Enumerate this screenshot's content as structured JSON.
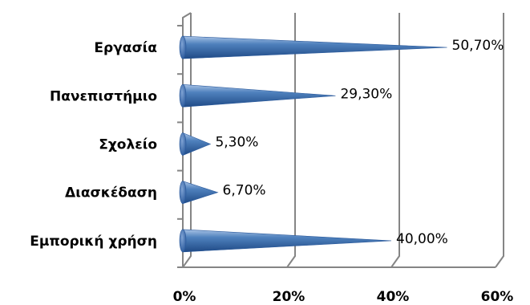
{
  "chart_data": {
    "type": "bar",
    "orientation": "horizontal",
    "shape": "cone",
    "categories": [
      "Εργασία",
      "Πανεπιστήμιο",
      "Σχολείο",
      "Διασκέδαση",
      "Εμπορική χρήση"
    ],
    "values": [
      50.7,
      29.3,
      5.3,
      6.7,
      40.0
    ],
    "data_labels": [
      "50,70%",
      "29,30%",
      "5,30%",
      "6,70%",
      "40,00%"
    ],
    "x_ticks": [
      "0%",
      "20%",
      "40%",
      "60%"
    ],
    "xlim": [
      0,
      60
    ],
    "title": "",
    "xlabel": "",
    "ylabel": "",
    "grid": true,
    "legend": "none",
    "colors": {
      "bar_dark": "#2b5a9c",
      "bar_mid": "#4f81bd",
      "bar_light": "#a9c3e6",
      "grid": "#858585"
    }
  }
}
